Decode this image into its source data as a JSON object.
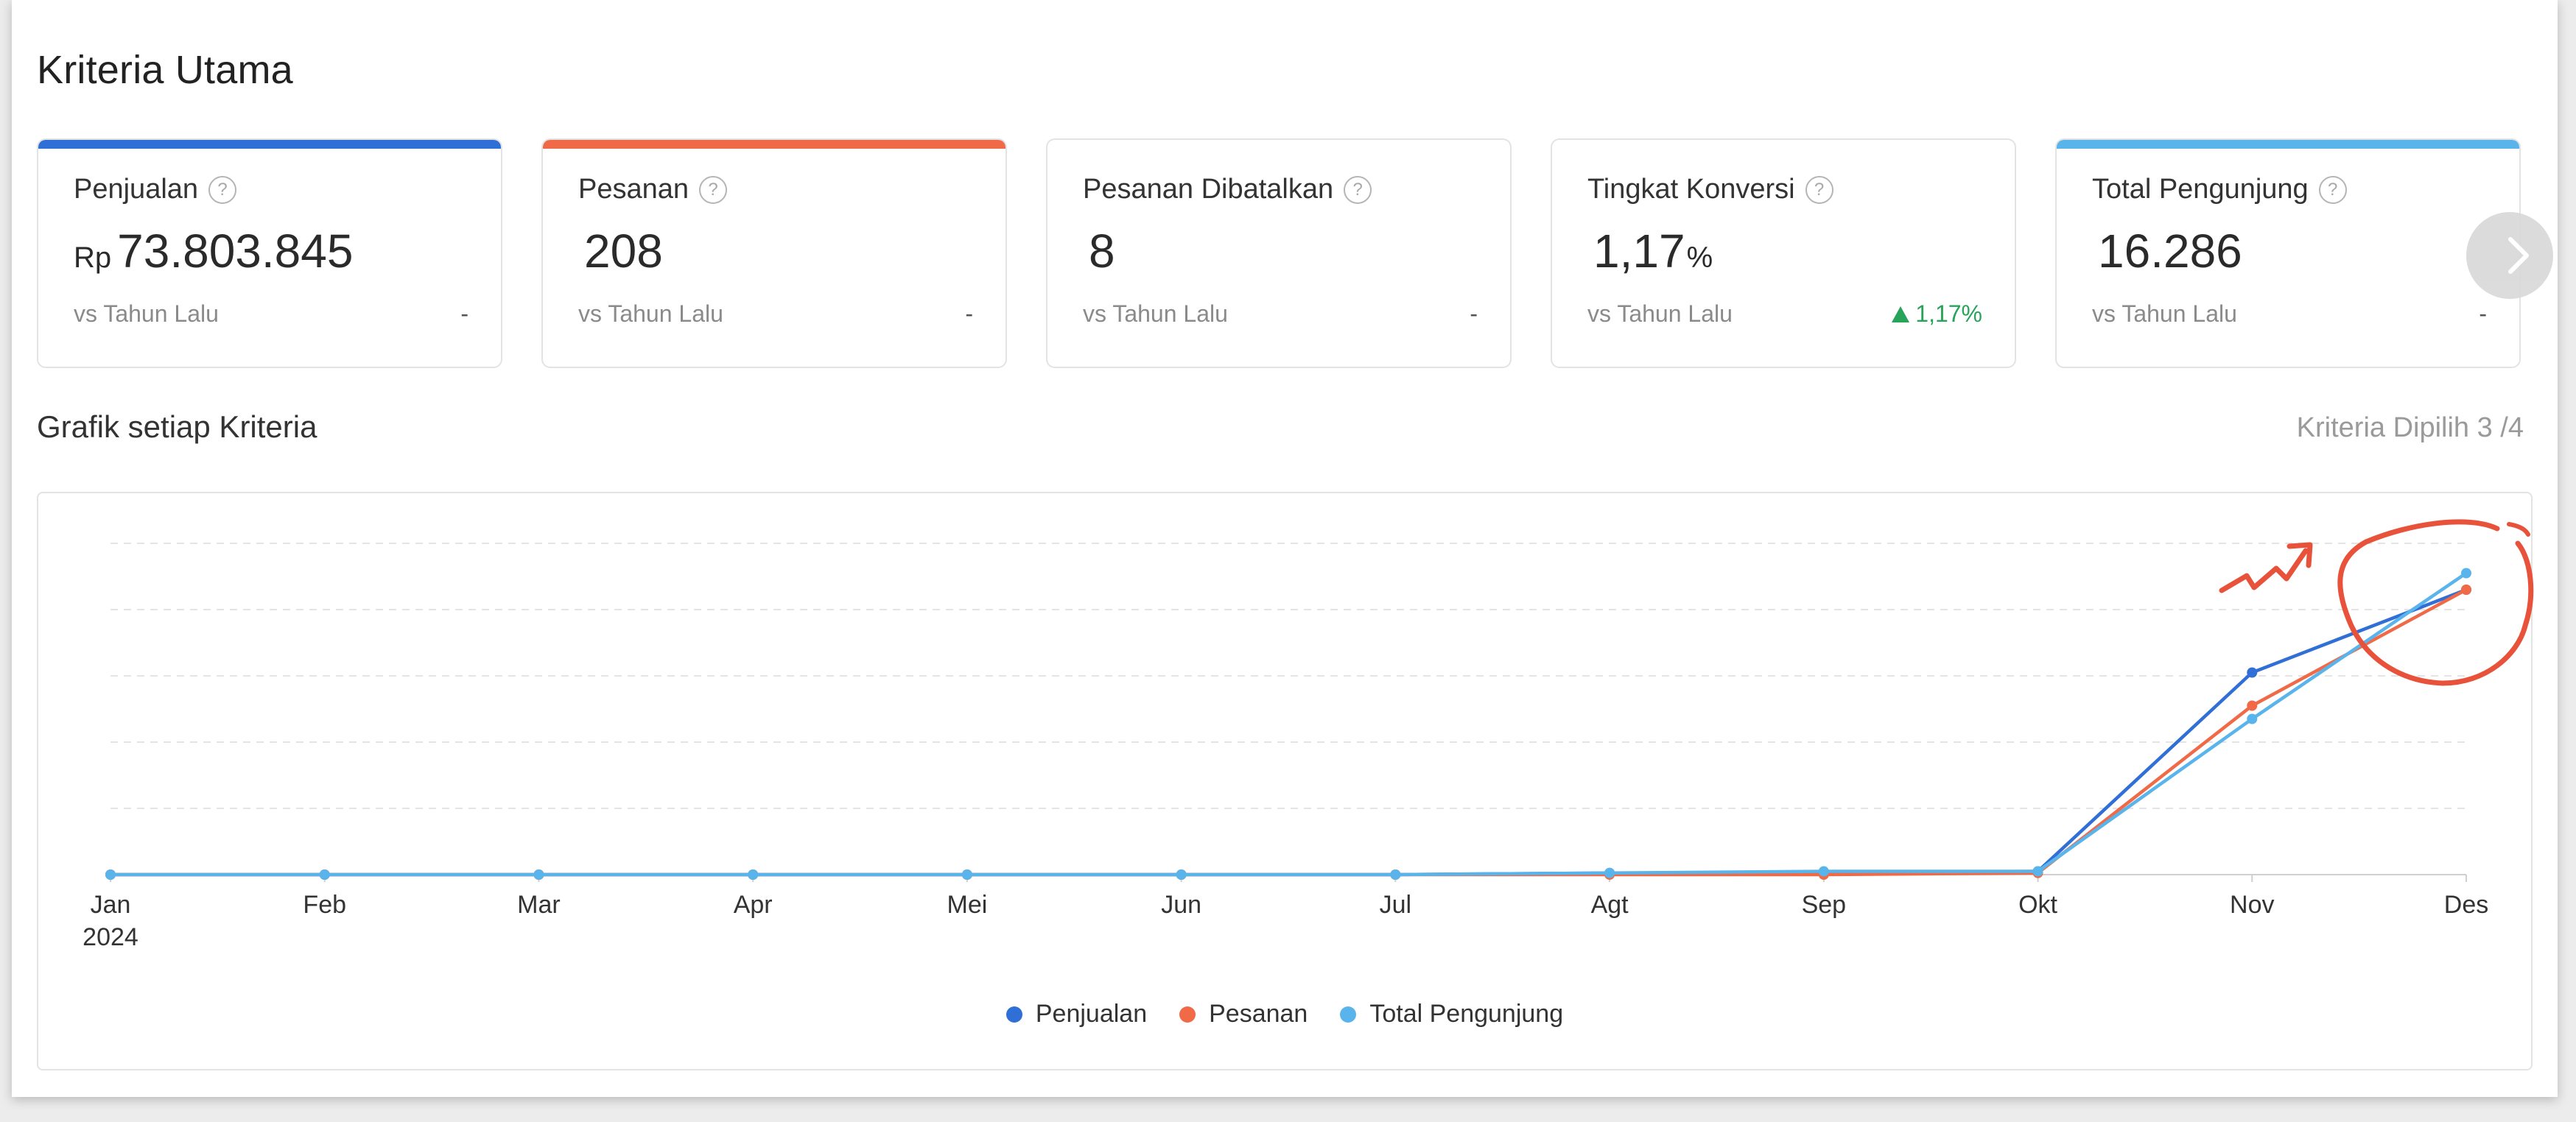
{
  "header": {
    "title": "Kriteria Utama"
  },
  "metrics": [
    {
      "name": "Penjualan",
      "prefix": "Rp",
      "value": "73.803.845",
      "suffix": "",
      "comparison": "vs Tahun Lalu",
      "change": "-",
      "accent": "#2f6fd6"
    },
    {
      "name": "Pesanan",
      "prefix": "",
      "value": "208",
      "suffix": "",
      "comparison": "vs Tahun Lalu",
      "change": "-",
      "accent": "#f06a47"
    },
    {
      "name": "Pesanan Dibatalkan",
      "prefix": "",
      "value": "8",
      "suffix": "",
      "comparison": "vs Tahun Lalu",
      "change": "-",
      "accent": ""
    },
    {
      "name": "Tingkat Konversi",
      "prefix": "",
      "value": "1,17",
      "suffix": "%",
      "comparison": "vs Tahun Lalu",
      "change": "1,17%",
      "change_direction": "up",
      "accent": ""
    },
    {
      "name": "Total Pengunjung",
      "prefix": "",
      "value": "16.286",
      "suffix": "",
      "comparison": "vs Tahun Lalu",
      "change": "-",
      "accent": "#5ab4ec"
    }
  ],
  "icons": {
    "help": "question-circle-icon",
    "next": "chevron-right-icon"
  },
  "section": {
    "title": "Grafik setiap Kriteria",
    "selected_label": "Kriteria Dipilih 3 /4"
  },
  "chart_data": {
    "type": "line",
    "categories": [
      "Jan",
      "Feb",
      "Mar",
      "Apr",
      "Mei",
      "Jun",
      "Jul",
      "Agt",
      "Sep",
      "Okt",
      "Nov",
      "Des"
    ],
    "year_label": "2024",
    "ylim": [
      0,
      100
    ],
    "grid": true,
    "legend_position": "bottom",
    "series": [
      {
        "name": "Penjualan",
        "color": "#2f6fd6",
        "values": [
          0,
          0,
          0,
          0,
          0,
          0,
          0,
          0.5,
          0.5,
          1,
          61,
          86
        ]
      },
      {
        "name": "Pesanan",
        "color": "#f06a47",
        "values": [
          0,
          0,
          0,
          0,
          0,
          0,
          0,
          0,
          0,
          0.5,
          51,
          86
        ]
      },
      {
        "name": "Total Pengunjung",
        "color": "#5ab4ec",
        "values": [
          0,
          0,
          0,
          0,
          0,
          0,
          0,
          0.5,
          1,
          1,
          47,
          91
        ]
      }
    ]
  }
}
